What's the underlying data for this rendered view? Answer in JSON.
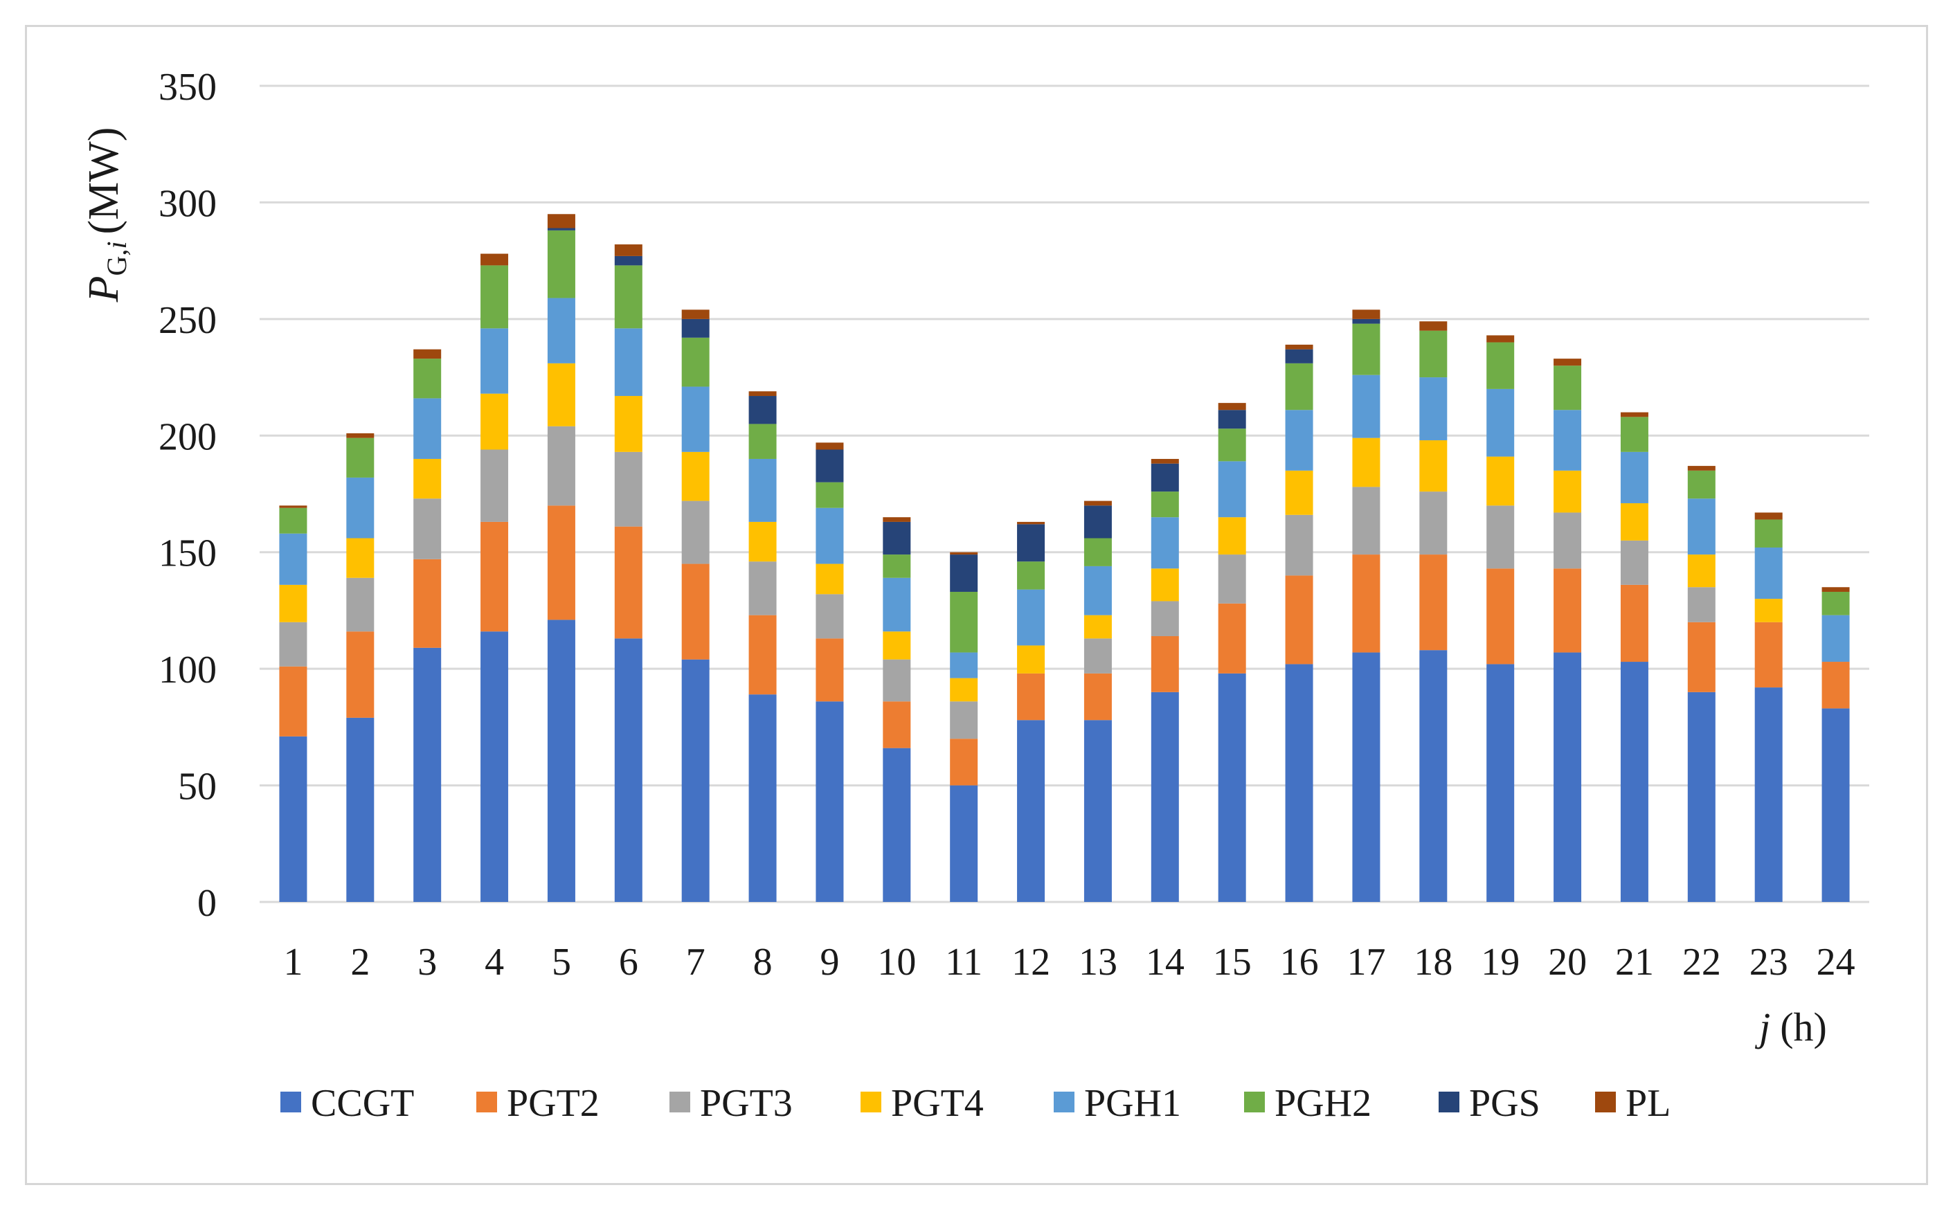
{
  "chart_data": {
    "type": "bar",
    "stacked": true,
    "title": "",
    "ylabel": "P_G,i (MW)",
    "ylabel_main": "P",
    "ylabel_sub": "G,",
    "ylabel_sub_i": "i",
    "ylabel_unit": "(MW)",
    "xlabel": "j (h)",
    "xlabel_var": "j",
    "xlabel_unit": "(h)",
    "ylim": [
      0,
      350
    ],
    "yticks": [
      0,
      50,
      100,
      150,
      200,
      250,
      300,
      350
    ],
    "grid": true,
    "legend_position": "bottom",
    "categories": [
      "1",
      "2",
      "3",
      "4",
      "5",
      "6",
      "7",
      "8",
      "9",
      "10",
      "11",
      "12",
      "13",
      "14",
      "15",
      "16",
      "17",
      "18",
      "19",
      "20",
      "21",
      "22",
      "23",
      "24"
    ],
    "series": [
      {
        "name": "CCGT",
        "color": "#4472C4",
        "values": [
          71,
          79,
          109,
          116,
          121,
          113,
          104,
          89,
          86,
          66,
          50,
          78,
          78,
          90,
          98,
          102,
          107,
          108,
          102,
          107,
          103,
          90,
          92,
          83
        ]
      },
      {
        "name": "PGT2",
        "color": "#ED7D31",
        "values": [
          30,
          37,
          38,
          47,
          49,
          48,
          41,
          34,
          27,
          20,
          20,
          20,
          20,
          24,
          30,
          38,
          42,
          41,
          41,
          36,
          33,
          30,
          28,
          20
        ]
      },
      {
        "name": "PGT3",
        "color": "#A5A5A5",
        "values": [
          19,
          23,
          26,
          31,
          34,
          32,
          27,
          23,
          19,
          18,
          16,
          0,
          15,
          15,
          21,
          26,
          29,
          27,
          27,
          24,
          19,
          15,
          0,
          0
        ]
      },
      {
        "name": "PGT4",
        "color": "#FFC000",
        "values": [
          16,
          17,
          17,
          24,
          27,
          24,
          21,
          17,
          13,
          12,
          10,
          12,
          10,
          14,
          16,
          19,
          21,
          22,
          21,
          18,
          16,
          14,
          10,
          0
        ]
      },
      {
        "name": "PGH1",
        "color": "#5B9BD5",
        "values": [
          22,
          26,
          26,
          28,
          28,
          29,
          28,
          27,
          24,
          23,
          11,
          24,
          21,
          22,
          24,
          26,
          27,
          27,
          29,
          26,
          22,
          24,
          22,
          20
        ]
      },
      {
        "name": "PGH2",
        "color": "#70AD47",
        "values": [
          11,
          17,
          17,
          27,
          29,
          27,
          21,
          15,
          11,
          10,
          26,
          12,
          12,
          11,
          14,
          20,
          22,
          20,
          20,
          19,
          15,
          12,
          12,
          10
        ]
      },
      {
        "name": "PGS",
        "color": "#264478",
        "values": [
          0,
          0,
          0,
          0,
          1,
          4,
          8,
          12,
          14,
          14,
          16,
          16,
          14,
          12,
          8,
          6,
          2,
          0,
          0,
          0,
          0,
          0,
          0,
          0
        ]
      },
      {
        "name": "PL",
        "color": "#9E480E",
        "values": [
          1,
          2,
          4,
          5,
          6,
          5,
          4,
          2,
          3,
          2,
          1,
          1,
          2,
          2,
          3,
          2,
          4,
          4,
          3,
          3,
          2,
          2,
          3,
          2
        ]
      }
    ]
  }
}
